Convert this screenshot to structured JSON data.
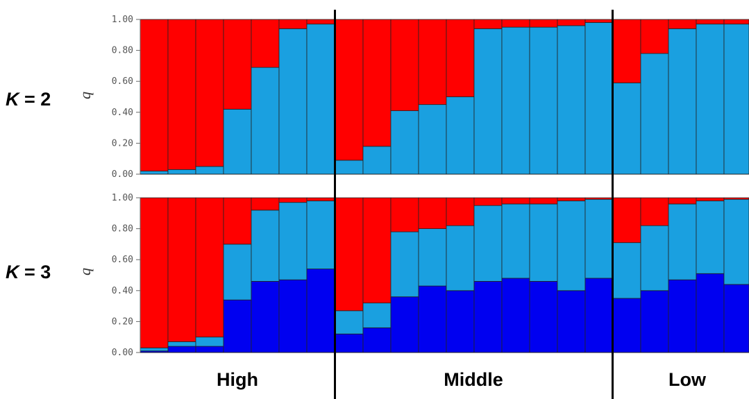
{
  "colors": {
    "cluster1": "#FF0000",
    "cluster2": "#1AA0E0",
    "cluster3": "#0000F0",
    "outline": "#222222"
  },
  "chart_data": {
    "type": "bar",
    "stacked": true,
    "groups": [
      {
        "label": "High",
        "count": 7
      },
      {
        "label": "Middle",
        "count": 10
      },
      {
        "label": "Low",
        "count": 5
      }
    ],
    "group_labels": [
      "High",
      "Middle",
      "Low"
    ],
    "ylabel": "q",
    "ylim": [
      0,
      1
    ],
    "yticks": [
      "0.00",
      "0.20",
      "0.40",
      "0.60",
      "0.80",
      "1.00"
    ],
    "panels": [
      {
        "k_prefix": "K",
        "k_suffix": " = 2",
        "series": [
          {
            "name": "",
            "values": [
              0.02,
              0.03,
              0.05,
              0.42,
              0.69,
              0.94,
              0.97,
              0.09,
              0.18,
              0.41,
              0.45,
              0.5,
              0.94,
              0.95,
              0.95,
              0.96,
              0.98,
              0.59,
              0.78,
              0.94,
              0.97,
              0.97
            ]
          },
          {
            "name": "",
            "values": [
              0.98,
              0.97,
              0.95,
              0.58,
              0.31,
              0.06,
              0.03,
              0.91,
              0.82,
              0.59,
              0.55,
              0.5,
              0.06,
              0.05,
              0.05,
              0.04,
              0.02,
              0.41,
              0.22,
              0.06,
              0.03,
              0.03
            ]
          }
        ]
      },
      {
        "k_prefix": "K",
        "k_suffix": " = 3",
        "series": [
          {
            "name": "",
            "values": [
              0.01,
              0.04,
              0.04,
              0.34,
              0.46,
              0.47,
              0.54,
              0.12,
              0.16,
              0.36,
              0.43,
              0.4,
              0.46,
              0.48,
              0.46,
              0.4,
              0.48,
              0.35,
              0.4,
              0.47,
              0.51,
              0.44
            ]
          },
          {
            "name": "",
            "values": [
              0.02,
              0.03,
              0.06,
              0.36,
              0.46,
              0.5,
              0.44,
              0.15,
              0.16,
              0.42,
              0.37,
              0.42,
              0.49,
              0.48,
              0.5,
              0.58,
              0.51,
              0.36,
              0.42,
              0.49,
              0.47,
              0.55
            ]
          },
          {
            "name": "",
            "values": [
              0.97,
              0.93,
              0.9,
              0.3,
              0.08,
              0.03,
              0.02,
              0.73,
              0.68,
              0.22,
              0.2,
              0.18,
              0.05,
              0.04,
              0.04,
              0.02,
              0.01,
              0.29,
              0.18,
              0.04,
              0.02,
              0.01
            ]
          }
        ]
      }
    ]
  }
}
